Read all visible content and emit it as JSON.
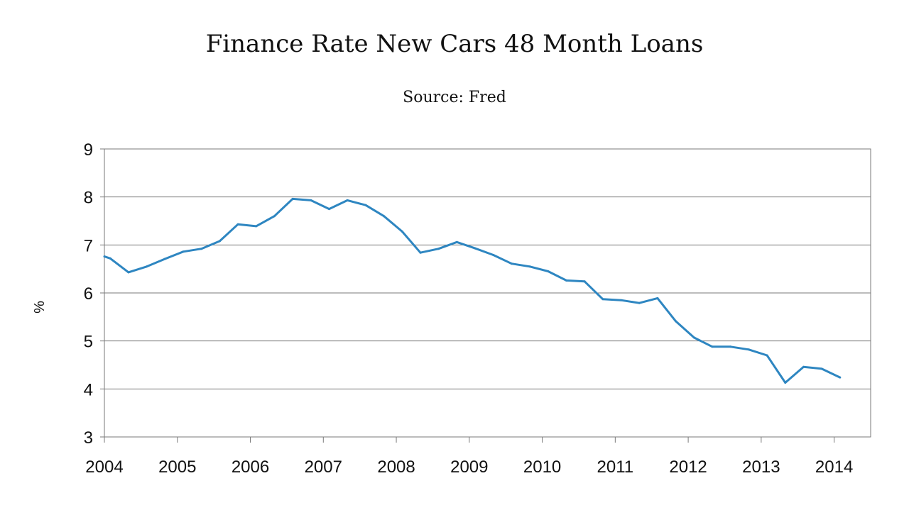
{
  "chart_data": {
    "type": "line",
    "title": "Finance Rate New Cars 48 Month Loans",
    "subtitle": "Source: Fred",
    "xlabel": "",
    "ylabel": "%",
    "ylim": [
      3,
      9
    ],
    "yticks": [
      "3",
      "4",
      "5",
      "6",
      "7",
      "8",
      "9"
    ],
    "xlim": [
      2004,
      2014.5
    ],
    "xticks": [
      "2004",
      "2005",
      "2006",
      "2007",
      "2008",
      "2009",
      "2010",
      "2011",
      "2012",
      "2013",
      "2014"
    ],
    "grid": "horizontal",
    "line_color": "#2e86c1",
    "series": [
      {
        "x": [
          2004.0,
          2004.08,
          2004.33,
          2004.58,
          2004.83,
          2005.08,
          2005.33,
          2005.58,
          2005.83,
          2006.08,
          2006.33,
          2006.58,
          2006.83,
          2007.08,
          2007.33,
          2007.58,
          2007.83,
          2008.08,
          2008.33,
          2008.58,
          2008.83,
          2009.08,
          2009.33,
          2009.58,
          2009.83,
          2010.08,
          2010.33,
          2010.58,
          2010.83,
          2011.08,
          2011.33,
          2011.58,
          2011.83,
          2012.08,
          2012.33,
          2012.58,
          2012.83,
          2013.08,
          2013.33,
          2013.58,
          2013.83,
          2014.08
        ],
        "values": [
          6.76,
          6.72,
          6.43,
          6.55,
          6.71,
          6.86,
          6.92,
          7.08,
          7.43,
          7.39,
          7.6,
          7.96,
          7.93,
          7.75,
          7.93,
          7.83,
          7.6,
          7.28,
          6.84,
          6.92,
          7.06,
          6.93,
          6.79,
          6.61,
          6.55,
          6.45,
          6.26,
          6.24,
          5.87,
          5.85,
          5.79,
          5.89,
          5.41,
          5.07,
          4.88,
          4.88,
          4.82,
          4.7,
          4.13,
          4.46,
          4.42,
          4.24
        ]
      }
    ]
  }
}
